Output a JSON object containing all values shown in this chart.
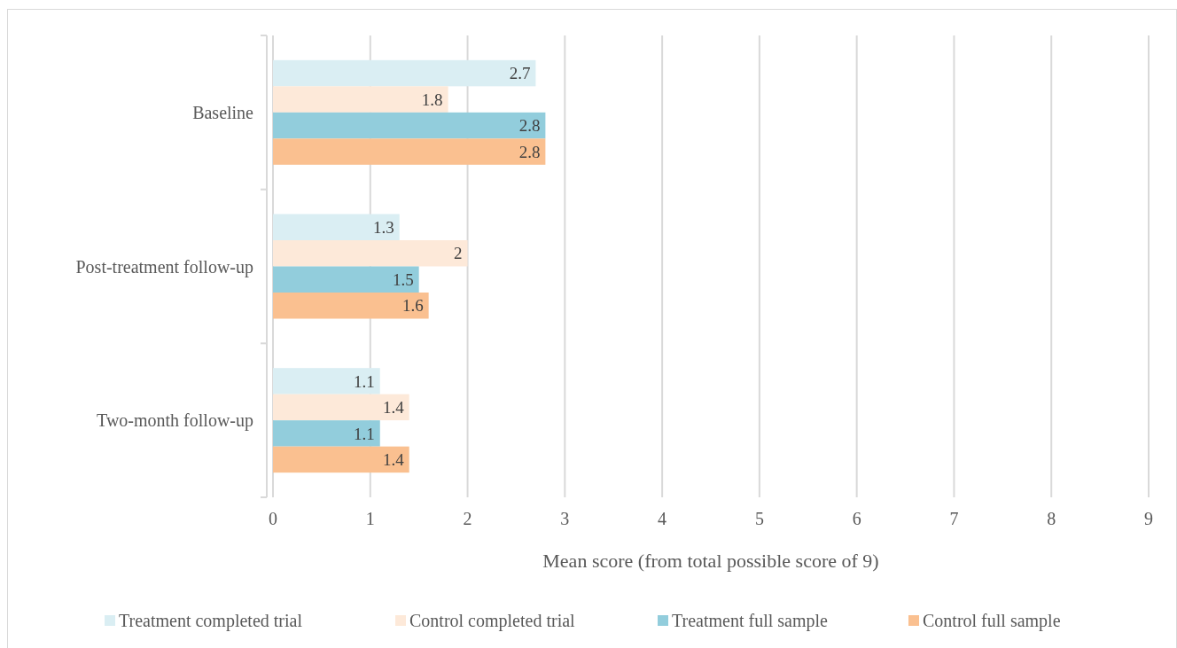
{
  "chart_data": {
    "type": "bar",
    "orientation": "horizontal",
    "xlabel": "Mean score (from total possible score of 9)",
    "categories": [
      "Baseline",
      "Post-treatment follow-up",
      "Two-month follow-up"
    ],
    "series": [
      {
        "name": "Treatment completed trial",
        "color": "#daeef3",
        "values": [
          2.7,
          1.3,
          1.1
        ]
      },
      {
        "name": "Control completed trial",
        "color": "#fde9d9",
        "values": [
          1.8,
          2,
          1.4
        ]
      },
      {
        "name": "Treatment full sample",
        "color": "#92cddc",
        "values": [
          2.8,
          1.5,
          1.1
        ]
      },
      {
        "name": "Control full sample",
        "color": "#fac090",
        "values": [
          2.8,
          1.6,
          1.4
        ]
      }
    ],
    "xlim": [
      0,
      9
    ],
    "xticks": [
      0,
      1,
      2,
      3,
      4,
      5,
      6,
      7,
      8,
      9
    ],
    "grid": "x",
    "legend": "bottom",
    "data_labels": true
  }
}
